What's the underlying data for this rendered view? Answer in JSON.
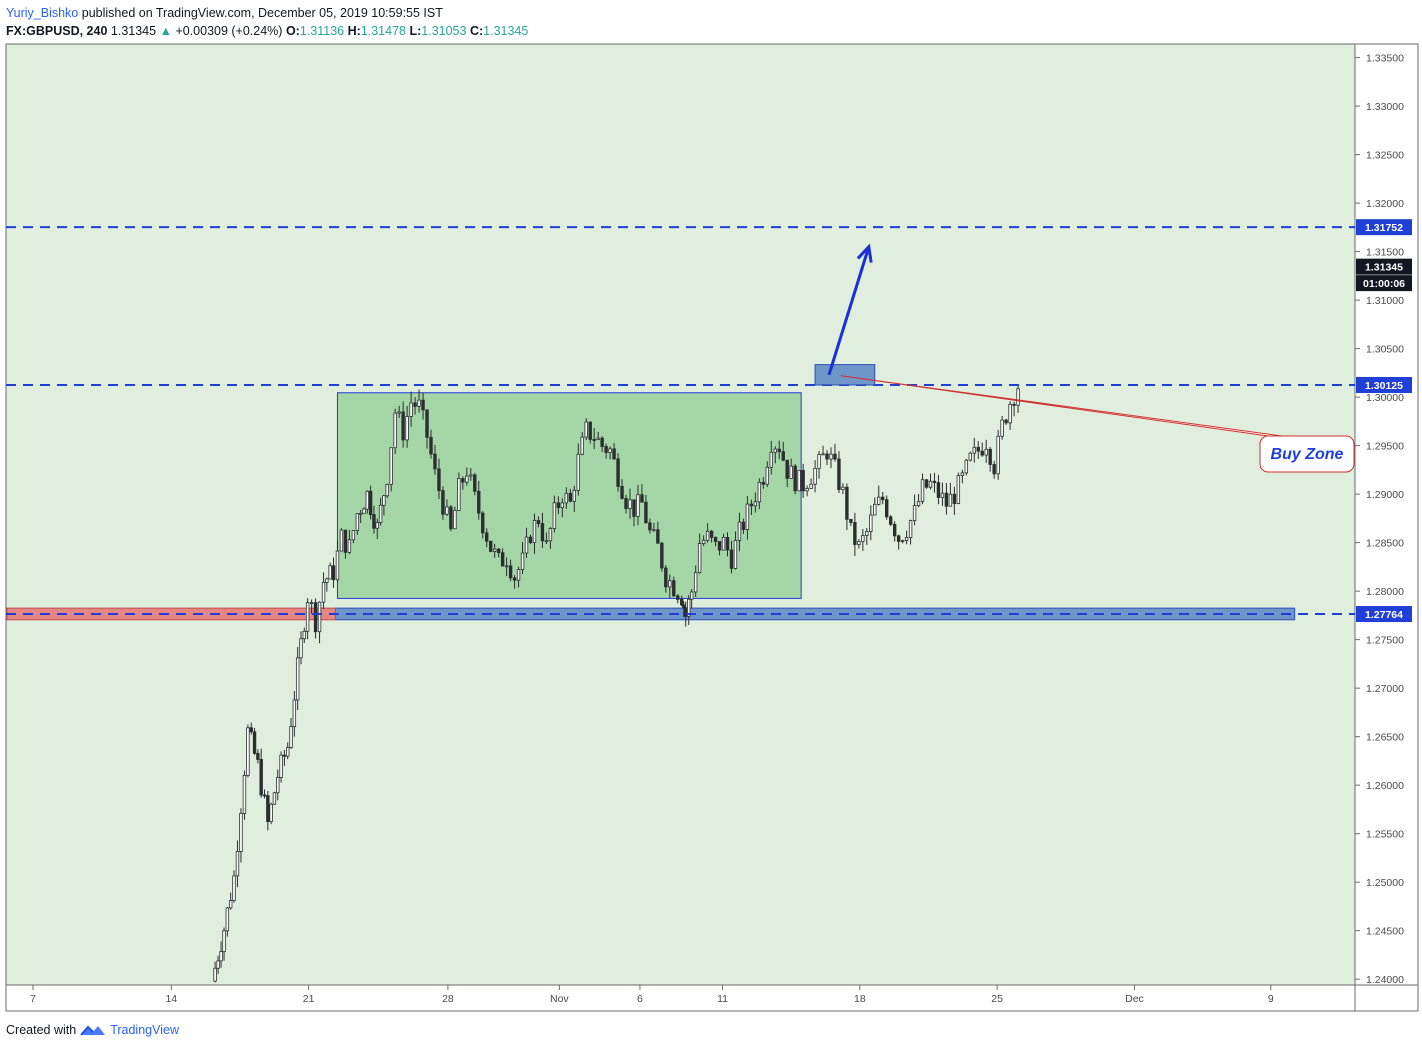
{
  "header": {
    "author": "Yuriy_Bishko",
    "published_text": "published on TradingView.com, December 05, 2019 10:59:55 IST",
    "symbol": "FX:GBPUSD, 240",
    "last": "1.31345",
    "change_arrow": "▲",
    "change": "+0.00309 (+0.24%)",
    "o_label": "O:",
    "o_val": "1.31136",
    "h_label": "H:",
    "h_val": "1.31478",
    "l_label": "L:",
    "l_val": "1.31053",
    "c_label": "C:",
    "c_val": "1.31345"
  },
  "footer": {
    "created_with": "Created with",
    "brand": "TradingView"
  },
  "colors": {
    "background": "#dfeedd",
    "range_box": "#a5d6a7",
    "range_border": "#1e3ad8",
    "level_line": "#1f3fd6",
    "buy_zone": "#5b86c4",
    "support_zone": "#5b86c4",
    "support_red": "#e57373",
    "candle": "#2a2e2f",
    "callout_border": "#d23030",
    "callout_text": "#1f3fd6"
  },
  "chart_data": {
    "type": "candlestick",
    "symbol": "FX:GBPUSD",
    "interval": "240",
    "x_ticks": [
      "7",
      "14",
      "21",
      "28",
      "Nov",
      "6",
      "11",
      "18",
      "25",
      "Dec",
      "9"
    ],
    "y_ticks": [
      "1.33500",
      "1.33000",
      "1.32500",
      "1.32000",
      "1.31500",
      "1.31000",
      "1.30500",
      "1.30000",
      "1.29500",
      "1.29000",
      "1.28500",
      "1.28000",
      "1.27500",
      "1.27000",
      "1.26500",
      "1.26000",
      "1.25500",
      "1.25000",
      "1.24500",
      "1.24000"
    ],
    "ylim": [
      1.2394,
      1.3364
    ],
    "price_labels": [
      {
        "text": "1.31752",
        "value": 1.31752,
        "kind": "level"
      },
      {
        "text": "1.31345",
        "value": 1.31345,
        "kind": "last"
      },
      {
        "text": "01:00:06",
        "value": 1.31175,
        "kind": "countdown"
      },
      {
        "text": "1.30125",
        "value": 1.30125,
        "kind": "level"
      },
      {
        "text": "1.27764",
        "value": 1.27764,
        "kind": "level"
      }
    ],
    "horizontal_lines": [
      1.31752,
      1.30125,
      1.27764
    ],
    "range_box": {
      "from_day": 15.3,
      "to_day": 38.6,
      "top": 1.30045,
      "bottom": 1.27925
    },
    "support_zone": {
      "from_day": 15.2,
      "to_day": 63.4,
      "top": 1.27825,
      "bottom": 1.27705
    },
    "support_zone_left_red": {
      "from_day": 0,
      "to_day": 15.2
    },
    "buy_zone": {
      "from_day": 39.3,
      "to_day": 42.3,
      "top": 1.30335,
      "bottom": 1.30125,
      "label": "Buy Zone"
    },
    "arrow": {
      "from_day": 40.0,
      "from_price": 1.3023,
      "to_day": 42.0,
      "to_price": 1.3155
    },
    "price_path": [
      [
        9.0,
        1.2398
      ],
      [
        9.6,
        1.2452
      ],
      [
        10.1,
        1.2505
      ],
      [
        10.8,
        1.2655
      ],
      [
        11.3,
        1.262
      ],
      [
        11.8,
        1.256
      ],
      [
        12.3,
        1.261
      ],
      [
        12.8,
        1.264
      ],
      [
        13.3,
        1.272
      ],
      [
        13.8,
        1.2795
      ],
      [
        14.2,
        1.277
      ],
      [
        14.6,
        1.281
      ],
      [
        15.1,
        1.282
      ],
      [
        15.5,
        1.2855
      ],
      [
        15.9,
        1.2845
      ],
      [
        16.3,
        1.288
      ],
      [
        16.8,
        1.29
      ],
      [
        17.3,
        1.2865
      ],
      [
        17.8,
        1.292
      ],
      [
        18.2,
        1.2985
      ],
      [
        18.6,
        1.2965
      ],
      [
        19.0,
        1.2995
      ],
      [
        19.4,
        1.299
      ],
      [
        19.8,
        1.296
      ],
      [
        20.2,
        1.292
      ],
      [
        20.6,
        1.289
      ],
      [
        21.0,
        1.286
      ],
      [
        21.4,
        1.2905
      ],
      [
        21.8,
        1.2925
      ],
      [
        22.2,
        1.2895
      ],
      [
        22.6,
        1.287
      ],
      [
        23.0,
        1.2845
      ],
      [
        23.4,
        1.283
      ],
      [
        23.8,
        1.2835
      ],
      [
        24.2,
        1.2815
      ],
      [
        24.6,
        1.283
      ],
      [
        25.0,
        1.286
      ],
      [
        25.4,
        1.2875
      ],
      [
        25.8,
        1.2845
      ],
      [
        26.2,
        1.288
      ],
      [
        26.6,
        1.29
      ],
      [
        27.0,
        1.289
      ],
      [
        27.4,
        1.2935
      ],
      [
        27.8,
        1.2965
      ],
      [
        28.2,
        1.296
      ],
      [
        28.6,
        1.295
      ],
      [
        29.0,
        1.2945
      ],
      [
        29.4,
        1.292
      ],
      [
        29.8,
        1.2895
      ],
      [
        30.2,
        1.2885
      ],
      [
        30.6,
        1.289
      ],
      [
        31.0,
        1.286
      ],
      [
        31.4,
        1.2845
      ],
      [
        31.8,
        1.2815
      ],
      [
        32.2,
        1.2805
      ],
      [
        32.6,
        1.2795
      ],
      [
        32.8,
        1.2775
      ],
      [
        33.1,
        1.28
      ],
      [
        33.5,
        1.285
      ],
      [
        33.9,
        1.2855
      ],
      [
        34.3,
        1.2845
      ],
      [
        34.7,
        1.285
      ],
      [
        35.1,
        1.2835
      ],
      [
        35.5,
        1.286
      ],
      [
        35.9,
        1.288
      ],
      [
        36.3,
        1.29
      ],
      [
        36.7,
        1.292
      ],
      [
        37.1,
        1.2955
      ],
      [
        37.5,
        1.295
      ],
      [
        37.9,
        1.2925
      ],
      [
        38.3,
        1.2915
      ],
      [
        38.7,
        1.291
      ],
      [
        39.1,
        1.292
      ],
      [
        39.5,
        1.293
      ],
      [
        39.9,
        1.2945
      ],
      [
        40.3,
        1.2925
      ],
      [
        40.7,
        1.29
      ],
      [
        41.1,
        1.286
      ],
      [
        41.5,
        1.2845
      ],
      [
        41.9,
        1.286
      ],
      [
        42.3,
        1.2885
      ],
      [
        42.7,
        1.2895
      ],
      [
        43.1,
        1.2875
      ],
      [
        43.5,
        1.2855
      ],
      [
        43.9,
        1.2865
      ],
      [
        44.3,
        1.288
      ],
      [
        44.7,
        1.2905
      ],
      [
        45.1,
        1.291
      ],
      [
        45.5,
        1.29
      ],
      [
        45.9,
        1.289
      ],
      [
        46.3,
        1.29
      ],
      [
        46.7,
        1.2915
      ],
      [
        47.1,
        1.2935
      ],
      [
        47.5,
        1.2945
      ],
      [
        47.9,
        1.2955
      ],
      [
        48.3,
        1.293
      ],
      [
        48.7,
        1.297
      ],
      [
        49.1,
        1.2995
      ],
      [
        49.5,
        1.3012
      ]
    ]
  }
}
